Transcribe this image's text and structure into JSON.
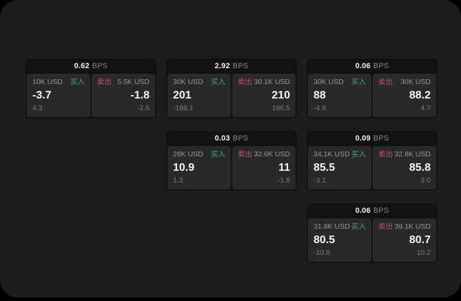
{
  "labels": {
    "bps_unit": "BPS",
    "buy": "买入",
    "sell": "卖出"
  },
  "colors": {
    "outer_background": "#000000",
    "panel_background": "#1d1d1f",
    "card_background": "#121214",
    "tile_background": "#29292b",
    "buy_green": "#46a571",
    "sell_red": "#c25365",
    "text_primary": "#f2f2f3",
    "text_secondary": "#98989c",
    "text_dim": "#7d7d81"
  },
  "cards": [
    {
      "bps": "0.62",
      "buy": {
        "amount": "10K USD",
        "value": "-3.7",
        "change": "4.3"
      },
      "sell": {
        "amount": "5.5K USD",
        "value": "-1.8",
        "change": "-2.6"
      }
    },
    {
      "bps": "2.92",
      "buy": {
        "amount": "30K USD",
        "value": "201",
        "change": "-188.1"
      },
      "sell": {
        "amount": "30.1K USD",
        "value": "210",
        "change": "196.5"
      }
    },
    {
      "bps": "0.06",
      "buy": {
        "amount": "30K USD",
        "value": "88",
        "change": "-4.9"
      },
      "sell": {
        "amount": "30K USD",
        "value": "88.2",
        "change": "4.7"
      }
    },
    {
      "bps": "0.03",
      "buy": {
        "amount": "28K USD",
        "value": "10.9",
        "change": "1.3"
      },
      "sell": {
        "amount": "32.6K USD",
        "value": "11",
        "change": "-1.8"
      }
    },
    {
      "bps": "0.09",
      "buy": {
        "amount": "34.1K USD",
        "value": "85.5",
        "change": "-3.1"
      },
      "sell": {
        "amount": "32.8K USD",
        "value": "85.8",
        "change": "3.0"
      }
    },
    {
      "bps": "0.06",
      "buy": {
        "amount": "31.8K USD",
        "value": "80.5",
        "change": "-10.8"
      },
      "sell": {
        "amount": "39.1K USD",
        "value": "80.7",
        "change": "10.2"
      }
    }
  ]
}
